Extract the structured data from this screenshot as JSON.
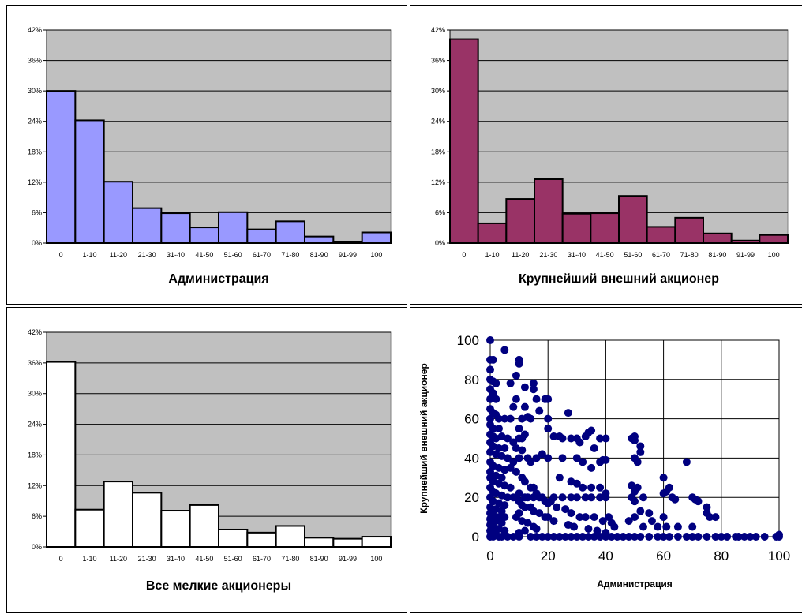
{
  "chart_data": [
    {
      "type": "bar",
      "categories": [
        "0",
        "1-10",
        "11-20",
        "21-30",
        "31-40",
        "41-50",
        "51-60",
        "61-70",
        "71-80",
        "81-90",
        "91-99",
        "100"
      ],
      "values": [
        30,
        24.2,
        12.1,
        6.9,
        5.9,
        3.1,
        6.1,
        2.7,
        4.3,
        1.3,
        0.2,
        2.1
      ],
      "xlabel": "Администрация",
      "ylabel": "",
      "ylim": [
        0,
        42
      ],
      "yticks": [
        "0%",
        "6%",
        "12%",
        "18%",
        "24%",
        "30%",
        "36%",
        "42%"
      ],
      "grid": true,
      "colors": {
        "bar": "#9999ff",
        "plot_bg": "#c0c0c0"
      }
    },
    {
      "type": "bar",
      "categories": [
        "0",
        "1-10",
        "11-20",
        "21-30",
        "31-40",
        "41-50",
        "51-60",
        "61-70",
        "71-80",
        "81-90",
        "91-99",
        "100"
      ],
      "values": [
        40.2,
        3.9,
        8.7,
        12.6,
        5.8,
        5.9,
        9.3,
        3.2,
        5.0,
        1.9,
        0.5,
        1.6
      ],
      "xlabel": "Крупнейший внешний акционер",
      "ylabel": "",
      "ylim": [
        0,
        42
      ],
      "yticks": [
        "0%",
        "6%",
        "12%",
        "18%",
        "24%",
        "30%",
        "36%",
        "42%"
      ],
      "grid": true,
      "colors": {
        "bar": "#993366",
        "plot_bg": "#c0c0c0"
      }
    },
    {
      "type": "bar",
      "categories": [
        "0",
        "1-10",
        "11-20",
        "21-30",
        "31-40",
        "41-50",
        "51-60",
        "61-70",
        "71-80",
        "81-90",
        "91-99",
        "100"
      ],
      "values": [
        36.2,
        7.3,
        12.8,
        10.6,
        7.1,
        8.2,
        3.4,
        2.8,
        4.1,
        1.8,
        1.6,
        2.0
      ],
      "xlabel": "Все мелкие акционеры",
      "ylabel": "",
      "ylim": [
        0,
        42
      ],
      "yticks": [
        "0%",
        "6%",
        "12%",
        "18%",
        "24%",
        "30%",
        "36%",
        "42%"
      ],
      "grid": true,
      "colors": {
        "bar": "#ffffff",
        "plot_bg": "#c0c0c0"
      }
    },
    {
      "type": "scatter",
      "xlabel": "Администрация",
      "ylabel": "Крупнейший внешний акционер",
      "xlim": [
        0,
        100
      ],
      "ylim": [
        0,
        100
      ],
      "xticks": [
        "0",
        "20",
        "40",
        "60",
        "80",
        "100"
      ],
      "yticks": [
        "0",
        "20",
        "40",
        "60",
        "80",
        "100"
      ],
      "grid": true,
      "colors": {
        "point": "#000080",
        "plot_bg": "#ffffff"
      },
      "points": [
        [
          0,
          100
        ],
        [
          0,
          90
        ],
        [
          1,
          90
        ],
        [
          0,
          85
        ],
        [
          0,
          80
        ],
        [
          1,
          79
        ],
        [
          2,
          78
        ],
        [
          0,
          75
        ],
        [
          1,
          73
        ],
        [
          0,
          70
        ],
        [
          2,
          70
        ],
        [
          0,
          65
        ],
        [
          1,
          63
        ],
        [
          2,
          62
        ],
        [
          0,
          60
        ],
        [
          3,
          60
        ],
        [
          5,
          60
        ],
        [
          7,
          60
        ],
        [
          0,
          57
        ],
        [
          1,
          55
        ],
        [
          3,
          55
        ],
        [
          0,
          52
        ],
        [
          1,
          51
        ],
        [
          2,
          50
        ],
        [
          4,
          51
        ],
        [
          6,
          50
        ],
        [
          0,
          48
        ],
        [
          1,
          46
        ],
        [
          3,
          45
        ],
        [
          5,
          45
        ],
        [
          0,
          43
        ],
        [
          2,
          42
        ],
        [
          4,
          41
        ],
        [
          6,
          40
        ],
        [
          0,
          38
        ],
        [
          1,
          36
        ],
        [
          3,
          35
        ],
        [
          5,
          34
        ],
        [
          0,
          33
        ],
        [
          2,
          31
        ],
        [
          4,
          30
        ],
        [
          0,
          30
        ],
        [
          1,
          28
        ],
        [
          3,
          27
        ],
        [
          5,
          26
        ],
        [
          7,
          25
        ],
        [
          0,
          25
        ],
        [
          1,
          23
        ],
        [
          2,
          22
        ],
        [
          4,
          21
        ],
        [
          6,
          20
        ],
        [
          8,
          20
        ],
        [
          0,
          20
        ],
        [
          1,
          18
        ],
        [
          3,
          17
        ],
        [
          5,
          16
        ],
        [
          0,
          15
        ],
        [
          2,
          14
        ],
        [
          4,
          13
        ],
        [
          0,
          12
        ],
        [
          1,
          11
        ],
        [
          3,
          10
        ],
        [
          5,
          10
        ],
        [
          0,
          9
        ],
        [
          2,
          8
        ],
        [
          4,
          7
        ],
        [
          0,
          6
        ],
        [
          1,
          5
        ],
        [
          3,
          4
        ],
        [
          5,
          3
        ],
        [
          0,
          3
        ],
        [
          1,
          2
        ],
        [
          2,
          1
        ],
        [
          3,
          0
        ],
        [
          0,
          0
        ],
        [
          1,
          0
        ],
        [
          4,
          0
        ],
        [
          6,
          0
        ],
        [
          8,
          0
        ],
        [
          10,
          0
        ],
        [
          5,
          95
        ],
        [
          7,
          78
        ],
        [
          9,
          82
        ],
        [
          10,
          90
        ],
        [
          10,
          88
        ],
        [
          12,
          76
        ],
        [
          12,
          66
        ],
        [
          13,
          61
        ],
        [
          15,
          78
        ],
        [
          15,
          75
        ],
        [
          16,
          70
        ],
        [
          17,
          64
        ],
        [
          19,
          70
        ],
        [
          20,
          70
        ],
        [
          9,
          70
        ],
        [
          8,
          66
        ],
        [
          11,
          60
        ],
        [
          14,
          60
        ],
        [
          10,
          55
        ],
        [
          12,
          52
        ],
        [
          10,
          50
        ],
        [
          11,
          50
        ],
        [
          8,
          48
        ],
        [
          9,
          45
        ],
        [
          11,
          44
        ],
        [
          13,
          40
        ],
        [
          14,
          38
        ],
        [
          16,
          40
        ],
        [
          18,
          42
        ],
        [
          10,
          40
        ],
        [
          8,
          38
        ],
        [
          7,
          35
        ],
        [
          9,
          33
        ],
        [
          11,
          30
        ],
        [
          12,
          28
        ],
        [
          14,
          25
        ],
        [
          15,
          25
        ],
        [
          16,
          22
        ],
        [
          10,
          22
        ],
        [
          9,
          20
        ],
        [
          12,
          20
        ],
        [
          13,
          20
        ],
        [
          15,
          20
        ],
        [
          17,
          20
        ],
        [
          18,
          20
        ],
        [
          19,
          18
        ],
        [
          20,
          17
        ],
        [
          10,
          18
        ],
        [
          11,
          16
        ],
        [
          12,
          15
        ],
        [
          14,
          15
        ],
        [
          15,
          13
        ],
        [
          17,
          12
        ],
        [
          19,
          10
        ],
        [
          20,
          10
        ],
        [
          10,
          12
        ],
        [
          9,
          10
        ],
        [
          11,
          8
        ],
        [
          13,
          7
        ],
        [
          15,
          5
        ],
        [
          16,
          4
        ],
        [
          12,
          3
        ],
        [
          10,
          2
        ],
        [
          14,
          0
        ],
        [
          16,
          0
        ],
        [
          18,
          0
        ],
        [
          20,
          0
        ],
        [
          22,
          0
        ],
        [
          24,
          0
        ],
        [
          20,
          60
        ],
        [
          20,
          55
        ],
        [
          22,
          51
        ],
        [
          24,
          51
        ],
        [
          25,
          50
        ],
        [
          27,
          63
        ],
        [
          28,
          50
        ],
        [
          30,
          50
        ],
        [
          31,
          48
        ],
        [
          33,
          51
        ],
        [
          34,
          53
        ],
        [
          35,
          54
        ],
        [
          36,
          45
        ],
        [
          38,
          50
        ],
        [
          40,
          50
        ],
        [
          20,
          40
        ],
        [
          25,
          40
        ],
        [
          30,
          40
        ],
        [
          32,
          38
        ],
        [
          35,
          35
        ],
        [
          38,
          38
        ],
        [
          39,
          39
        ],
        [
          40,
          39
        ],
        [
          24,
          30
        ],
        [
          28,
          28
        ],
        [
          30,
          27
        ],
        [
          32,
          25
        ],
        [
          35,
          25
        ],
        [
          38,
          25
        ],
        [
          40,
          22
        ],
        [
          22,
          20
        ],
        [
          25,
          20
        ],
        [
          28,
          20
        ],
        [
          30,
          20
        ],
        [
          33,
          20
        ],
        [
          35,
          20
        ],
        [
          38,
          20
        ],
        [
          40,
          20
        ],
        [
          21,
          18
        ],
        [
          23,
          15
        ],
        [
          26,
          14
        ],
        [
          28,
          12
        ],
        [
          31,
          10
        ],
        [
          33,
          10
        ],
        [
          36,
          10
        ],
        [
          39,
          8
        ],
        [
          41,
          10
        ],
        [
          42,
          7
        ],
        [
          43,
          5
        ],
        [
          22,
          8
        ],
        [
          27,
          6
        ],
        [
          29,
          5
        ],
        [
          34,
          4
        ],
        [
          37,
          3
        ],
        [
          40,
          2
        ],
        [
          26,
          0
        ],
        [
          28,
          0
        ],
        [
          30,
          0
        ],
        [
          32,
          0
        ],
        [
          34,
          0
        ],
        [
          36,
          0
        ],
        [
          38,
          0
        ],
        [
          40,
          0
        ],
        [
          42,
          0
        ],
        [
          44,
          0
        ],
        [
          46,
          0
        ],
        [
          48,
          0
        ],
        [
          49,
          50
        ],
        [
          50,
          51
        ],
        [
          50,
          49
        ],
        [
          52,
          46
        ],
        [
          52,
          43
        ],
        [
          50,
          40
        ],
        [
          51,
          38
        ],
        [
          49,
          26
        ],
        [
          50,
          23
        ],
        [
          51,
          25
        ],
        [
          53,
          20
        ],
        [
          49,
          20
        ],
        [
          50,
          18
        ],
        [
          52,
          13
        ],
        [
          48,
          8
        ],
        [
          50,
          10
        ],
        [
          53,
          5
        ],
        [
          55,
          12
        ],
        [
          56,
          8
        ],
        [
          58,
          5
        ],
        [
          60,
          30
        ],
        [
          60,
          22
        ],
        [
          61,
          23
        ],
        [
          62,
          25
        ],
        [
          63,
          20
        ],
        [
          64,
          19
        ],
        [
          60,
          10
        ],
        [
          61,
          5
        ],
        [
          65,
          5
        ],
        [
          68,
          38
        ],
        [
          70,
          20
        ],
        [
          71,
          19
        ],
        [
          70,
          5
        ],
        [
          72,
          18
        ],
        [
          75,
          15
        ],
        [
          75,
          12
        ],
        [
          76,
          10
        ],
        [
          78,
          10
        ],
        [
          80,
          0
        ],
        [
          50,
          0
        ],
        [
          52,
          0
        ],
        [
          55,
          0
        ],
        [
          58,
          0
        ],
        [
          60,
          0
        ],
        [
          62,
          0
        ],
        [
          65,
          0
        ],
        [
          68,
          0
        ],
        [
          70,
          0
        ],
        [
          72,
          0
        ],
        [
          75,
          0
        ],
        [
          78,
          0
        ],
        [
          82,
          0
        ],
        [
          85,
          0
        ],
        [
          86,
          0
        ],
        [
          88,
          0
        ],
        [
          90,
          0
        ],
        [
          92,
          0
        ],
        [
          95,
          0
        ],
        [
          99,
          0
        ],
        [
          100,
          0
        ],
        [
          100,
          1
        ]
      ]
    }
  ]
}
